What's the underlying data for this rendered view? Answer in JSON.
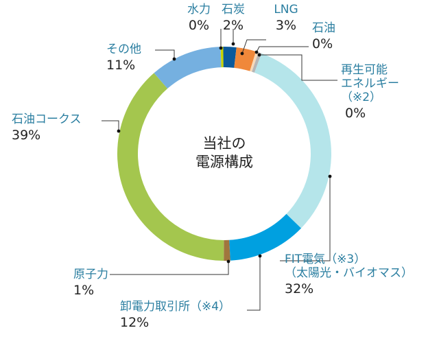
{
  "chart_data": {
    "type": "pie",
    "title": "当社の\n電源構成",
    "title_lines": [
      "当社の",
      "電源構成"
    ],
    "categories": [
      "水力",
      "石炭",
      "LNG",
      "石油",
      "再生可能エネルギー（※2）",
      "FIT電気（※3）（太陽光・バイオマス）",
      "卸電力取引所（※4）",
      "原子力",
      "石油コークス",
      "その他"
    ],
    "values": [
      0.4,
      2,
      3,
      0.4,
      0.5,
      32,
      12,
      1,
      39,
      11
    ],
    "value_labels": [
      "0%",
      "2%",
      "3%",
      "0%",
      "0%",
      "32%",
      "12%",
      "1%",
      "39%",
      "11%"
    ],
    "colors": [
      "#c8d400",
      "#0b5a9c",
      "#f0883a",
      "#f8d9b8",
      "#b6b6b6",
      "#b5e5ea",
      "#00a0e0",
      "#a0763e",
      "#a4c64e",
      "#75b0e0"
    ],
    "label_lines": [
      [
        "水力"
      ],
      [
        "石炭"
      ],
      [
        "LNG"
      ],
      [
        "石油"
      ],
      [
        "再生可能",
        "エネルギー",
        "（※2）"
      ],
      [
        "FIT電気（※3）",
        "（太陽光・バイオマス）"
      ],
      [
        "卸電力取引所（※4）"
      ],
      [
        "原子力"
      ],
      [
        "石油コークス"
      ],
      [
        "その他"
      ]
    ],
    "legend": "none",
    "unit": "%"
  }
}
